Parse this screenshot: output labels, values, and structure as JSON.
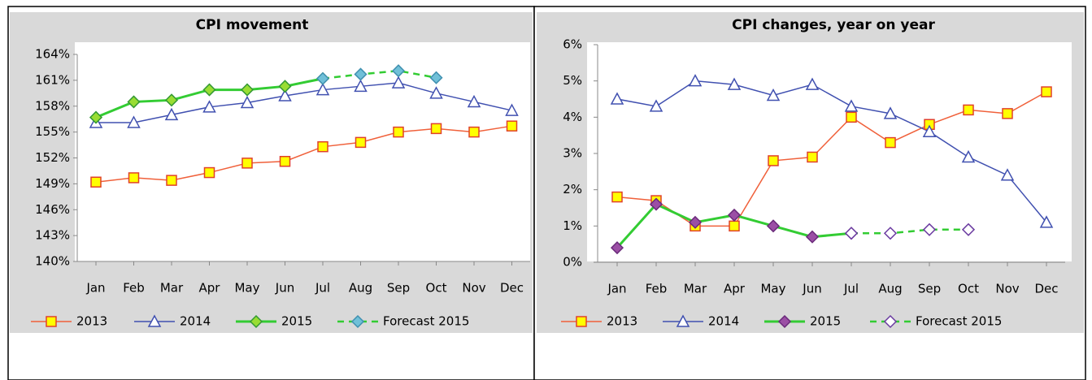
{
  "chart_data": [
    {
      "type": "line",
      "title": "CPI movement",
      "categories": [
        "Jan",
        "Feb",
        "Mar",
        "Apr",
        "May",
        "Jun",
        "Jul",
        "Aug",
        "Sep",
        "Oct",
        "Nov",
        "Dec"
      ],
      "ylim": [
        140,
        164
      ],
      "yticks": [
        {
          "value": 140,
          "label": "140%"
        },
        {
          "value": 143,
          "label": "143%"
        },
        {
          "value": 146,
          "label": "146%"
        },
        {
          "value": 149,
          "label": "149%"
        },
        {
          "value": 152,
          "label": "152%"
        },
        {
          "value": 155,
          "label": "155%"
        },
        {
          "value": 158,
          "label": "158%"
        },
        {
          "value": 161,
          "label": "161%"
        },
        {
          "value": 164,
          "label": "164%"
        }
      ],
      "legend": "bottom",
      "series": [
        {
          "name": "2013",
          "color": "#f0603a",
          "marker": "square",
          "marker_fill": "#ffff00",
          "marker_stroke": "#e0402a",
          "width": 1.5,
          "dash": false,
          "values": [
            149.2,
            149.7,
            149.4,
            150.3,
            151.4,
            151.6,
            153.3,
            153.8,
            155.0,
            155.4,
            155.0,
            155.7
          ]
        },
        {
          "name": "2014",
          "color": "#4050b0",
          "marker": "triangle",
          "marker_fill": "#ffffff",
          "marker_stroke": "#4050b0",
          "width": 1.5,
          "dash": false,
          "values": [
            156.1,
            156.1,
            157.0,
            157.9,
            158.4,
            159.2,
            159.9,
            160.3,
            160.7,
            159.5,
            158.5,
            157.5
          ]
        },
        {
          "name": "2015",
          "color": "#33cc33",
          "marker": "diamond",
          "marker_fill": "#99dd33",
          "marker_stroke": "#339933",
          "width": 3,
          "dash": false,
          "values": [
            156.7,
            158.5,
            158.7,
            159.9,
            159.9,
            160.3,
            161.2,
            null,
            null,
            null,
            null,
            null
          ]
        },
        {
          "name": "Forecast 2015",
          "color": "#33cc33",
          "marker": "diamond",
          "marker_fill": "#70c0d8",
          "marker_stroke": "#4090b0",
          "width": 2.5,
          "dash": true,
          "values": [
            null,
            null,
            null,
            null,
            null,
            null,
            161.2,
            161.7,
            162.1,
            161.3,
            null,
            null
          ]
        }
      ]
    },
    {
      "type": "line",
      "title": "CPI changes, year on year",
      "categories": [
        "Jan",
        "Feb",
        "Mar",
        "Apr",
        "May",
        "Jun",
        "Jul",
        "Aug",
        "Sep",
        "Oct",
        "Nov",
        "Dec"
      ],
      "ylim": [
        0,
        6
      ],
      "yticks": [
        {
          "value": 0,
          "label": "0%"
        },
        {
          "value": 1,
          "label": "1%"
        },
        {
          "value": 2,
          "label": "2%"
        },
        {
          "value": 3,
          "label": "3%"
        },
        {
          "value": 4,
          "label": "4%"
        },
        {
          "value": 5,
          "label": "5%"
        },
        {
          "value": 6,
          "label": "6%"
        }
      ],
      "legend": "bottom",
      "series": [
        {
          "name": "2013",
          "color": "#f0603a",
          "marker": "square",
          "marker_fill": "#ffff00",
          "marker_stroke": "#e0402a",
          "width": 1.5,
          "dash": false,
          "values": [
            1.8,
            1.7,
            1.0,
            1.0,
            2.8,
            2.9,
            4.0,
            3.3,
            3.8,
            4.2,
            4.1,
            4.7
          ]
        },
        {
          "name": "2014",
          "color": "#4050b0",
          "marker": "triangle",
          "marker_fill": "#ffffff",
          "marker_stroke": "#4050b0",
          "width": 1.5,
          "dash": false,
          "values": [
            4.5,
            4.3,
            5.0,
            4.9,
            4.6,
            4.9,
            4.3,
            4.1,
            3.6,
            2.9,
            2.4,
            1.1
          ]
        },
        {
          "name": "2015",
          "color": "#33cc33",
          "marker": "diamond",
          "marker_fill": "#9b4fa5",
          "marker_stroke": "#6a2a7a",
          "width": 3,
          "dash": false,
          "values": [
            0.4,
            1.6,
            1.1,
            1.3,
            1.0,
            0.7,
            0.8,
            null,
            null,
            null,
            null,
            null
          ]
        },
        {
          "name": "Forecast 2015",
          "color": "#33cc33",
          "marker": "diamond",
          "marker_fill": "#ffffff",
          "marker_stroke": "#6a3aa0",
          "width": 2.5,
          "dash": true,
          "values": [
            null,
            null,
            null,
            null,
            null,
            null,
            0.8,
            0.8,
            0.9,
            0.9,
            null,
            null
          ]
        }
      ]
    }
  ]
}
